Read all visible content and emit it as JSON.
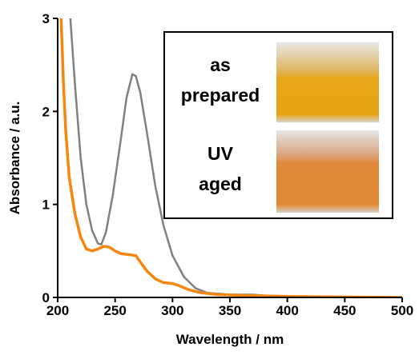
{
  "chart_data": {
    "type": "line",
    "x_label": "Wavelength / nm",
    "y_label": "Absorbance / a.u.",
    "xlim": [
      200,
      500
    ],
    "xticks": [
      200,
      250,
      300,
      350,
      400,
      450,
      500
    ],
    "ylim": [
      0,
      3
    ],
    "yticks": [
      0,
      1,
      2,
      3
    ],
    "series": [
      {
        "color": "#808080",
        "x": [
          211,
          215,
          220,
          225,
          230,
          235,
          238,
          242,
          248,
          255,
          260,
          265,
          268,
          272,
          278,
          285,
          292,
          300,
          310,
          320,
          330,
          350,
          370,
          400,
          500
        ],
        "values": [
          3,
          2.3,
          1.5,
          1.0,
          0.72,
          0.58,
          0.57,
          0.7,
          1.1,
          1.7,
          2.15,
          2.4,
          2.38,
          2.2,
          1.75,
          1.2,
          0.78,
          0.45,
          0.22,
          0.1,
          0.05,
          0.03,
          0.03,
          0.0,
          0.0
        ]
      },
      {
        "color": "#f7860f",
        "x": [
          203,
          205,
          207,
          210,
          215,
          220,
          225,
          230,
          235,
          240,
          245,
          250,
          255,
          262,
          268,
          272,
          278,
          285,
          292,
          300,
          305,
          315,
          325,
          340,
          370,
          400,
          500
        ],
        "values": [
          3,
          2.3,
          1.8,
          1.3,
          0.9,
          0.65,
          0.52,
          0.5,
          0.52,
          0.55,
          0.54,
          0.5,
          0.47,
          0.46,
          0.45,
          0.38,
          0.28,
          0.2,
          0.16,
          0.15,
          0.13,
          0.08,
          0.05,
          0.03,
          0.02,
          0.01,
          0.0
        ]
      }
    ],
    "inset": [
      {
        "lines": [
          "as",
          "prepared"
        ]
      },
      {
        "lines": [
          "UV",
          "aged"
        ]
      }
    ]
  }
}
